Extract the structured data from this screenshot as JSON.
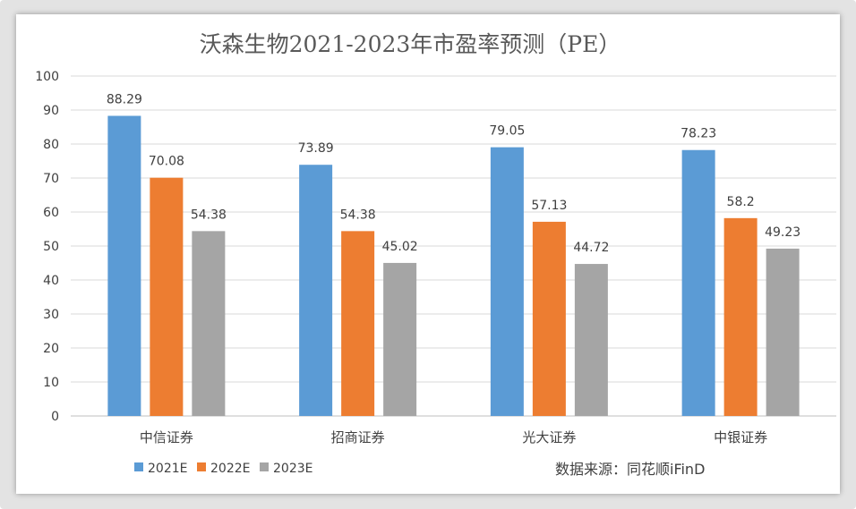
{
  "chart_data": {
    "type": "bar",
    "title": "沃森生物2021-2023年市盈率预测（PE）",
    "categories": [
      "中信证券",
      "招商证券",
      "光大证券",
      "中银证券"
    ],
    "series": [
      {
        "name": "2021E",
        "color": "#5b9bd5",
        "values": [
          88.29,
          73.89,
          79.05,
          78.23
        ]
      },
      {
        "name": "2022E",
        "color": "#ed7d31",
        "values": [
          70.08,
          54.38,
          57.13,
          58.2
        ]
      },
      {
        "name": "2023E",
        "color": "#a5a5a5",
        "values": [
          54.38,
          45.02,
          44.72,
          49.23
        ]
      }
    ],
    "ylim": [
      0,
      100
    ],
    "yticks": [
      0,
      10,
      20,
      30,
      40,
      50,
      60,
      70,
      80,
      90,
      100
    ],
    "xlabel": "",
    "ylabel": "",
    "grid": true,
    "source": "数据来源：同花顺iFinD"
  }
}
